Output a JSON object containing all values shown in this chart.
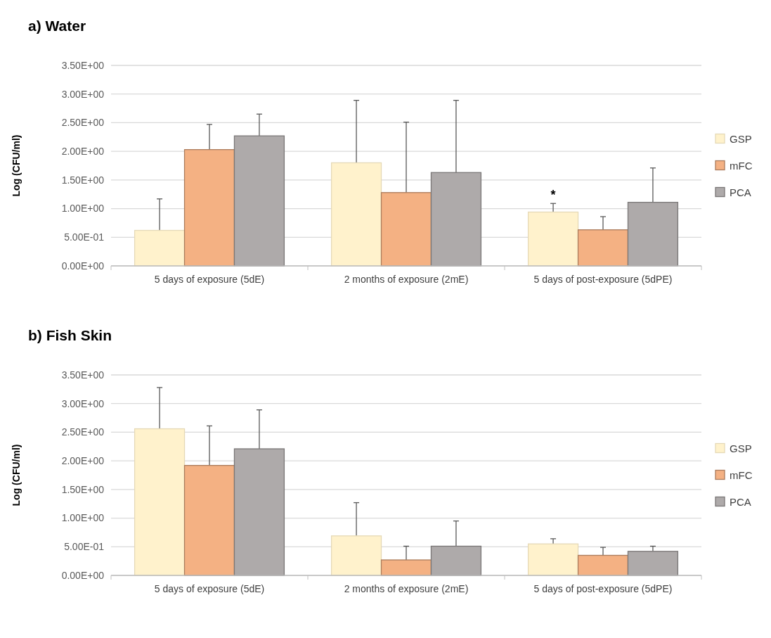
{
  "chart_data": [
    {
      "type": "bar",
      "title": "a) Water",
      "ylabel": "Log (CFU/ml)",
      "categories": [
        "5 days of exposure (5dE)",
        "2 months of exposure (2mE)",
        "5 days of post-exposure (5dPE)"
      ],
      "series": [
        {
          "name": "GSP",
          "color": "#fff2cc",
          "values": [
            0.62,
            1.8,
            0.94
          ],
          "errors": [
            [
              0.62,
              1.17
            ],
            [
              1.8,
              2.89
            ],
            [
              0.94,
              1.09
            ]
          ]
        },
        {
          "name": "mFC",
          "color": "#f4b183",
          "values": [
            2.03,
            1.28,
            0.63
          ],
          "errors": [
            [
              2.03,
              2.47
            ],
            [
              1.28,
              2.51
            ],
            [
              0.63,
              0.86
            ]
          ]
        },
        {
          "name": "PCA",
          "color": "#aeaaaa",
          "values": [
            2.27,
            1.63,
            1.11
          ],
          "errors": [
            [
              2.27,
              2.65
            ],
            [
              1.63,
              2.89
            ],
            [
              1.11,
              1.71
            ]
          ]
        }
      ],
      "ylim": [
        0,
        3.5
      ],
      "yticks": [
        {
          "value": 0,
          "label": "0.00E+00"
        },
        {
          "value": 0.5,
          "label": "5.00E-01"
        },
        {
          "value": 1,
          "label": "1.00E+00"
        },
        {
          "value": 1.5,
          "label": "1.50E+00"
        },
        {
          "value": 2,
          "label": "2.00E+00"
        },
        {
          "value": 2.5,
          "label": "2.50E+00"
        },
        {
          "value": 3,
          "label": "3.00E+00"
        },
        {
          "value": 3.5,
          "label": "3.50E+00"
        }
      ],
      "grid": "y",
      "legend": "right",
      "annotations": [
        "*"
      ]
    },
    {
      "type": "bar",
      "title": "b) Fish Skin",
      "ylabel": "Log (CFU/ml)",
      "categories": [
        "5 days of exposure (5dE)",
        "2 months of exposure (2mE)",
        "5 days of post-exposure (5dPE)"
      ],
      "series": [
        {
          "name": "GSP",
          "color": "#fff2cc",
          "values": [
            2.56,
            0.69,
            0.55
          ],
          "errors": [
            [
              2.56,
              3.28
            ],
            [
              0.69,
              1.27
            ],
            [
              0.55,
              0.64
            ]
          ]
        },
        {
          "name": "mFC",
          "color": "#f4b183",
          "values": [
            1.92,
            0.27,
            0.35
          ],
          "errors": [
            [
              1.92,
              2.61
            ],
            [
              0.27,
              0.51
            ],
            [
              0.35,
              0.49
            ]
          ]
        },
        {
          "name": "PCA",
          "color": "#aeaaaa",
          "values": [
            2.21,
            0.51,
            0.42
          ],
          "errors": [
            [
              2.21,
              2.89
            ],
            [
              0.51,
              0.95
            ],
            [
              0.42,
              0.51
            ]
          ]
        }
      ],
      "ylim": [
        0,
        3.5
      ],
      "yticks": [
        {
          "value": 0,
          "label": "0.00E+00"
        },
        {
          "value": 0.5,
          "label": "5.00E-01"
        },
        {
          "value": 1,
          "label": "1.00E+00"
        },
        {
          "value": 1.5,
          "label": "1.50E+00"
        },
        {
          "value": 2,
          "label": "2.00E+00"
        },
        {
          "value": 2.5,
          "label": "2.50E+00"
        },
        {
          "value": 3,
          "label": "3.00E+00"
        },
        {
          "value": 3.5,
          "label": "3.50E+00"
        }
      ],
      "grid": "y",
      "legend": "right"
    }
  ]
}
